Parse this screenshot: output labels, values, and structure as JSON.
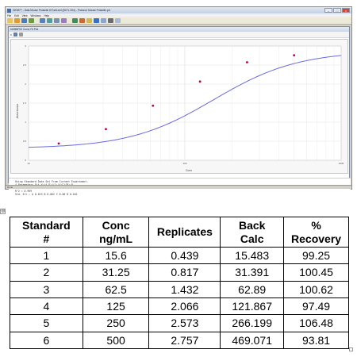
{
  "app": {
    "title": "GEN5™ - Data Mouse Prolactin KIT,std.xml (BCTL 004) - Protocol: Mouse Prolactin.prt",
    "menu": [
      "File",
      "Edit",
      "View",
      "Windows",
      "Help"
    ],
    "window_buttons": [
      "–",
      "□",
      "×"
    ],
    "child_title": "MOBBP02 Curve Fit Plot",
    "zoom_label": "x"
  },
  "text_panel": {
    "lines": [
      "Using Standard Data Set From Current Experiment.",
      "4 Parameters Fit Y=(A-D)/(1+(X/C)^B)+D",
      "A=0.309  B=1.61  C=152.8  D=2.87",
      "R^2 = 0.999",
      "Std. Err.: A 0.013   B 0.062   C 8.06   D 0.041"
    ]
  },
  "status": "Done",
  "chart_data": {
    "type": "scatter",
    "title": "",
    "xlabel": "Conc",
    "ylabel": "Absorbance",
    "x_scale": "log",
    "xlim": [
      10,
      1000
    ],
    "ylim": [
      0,
      3
    ],
    "x_ticks": [
      10,
      100,
      1000
    ],
    "y_ticks": [
      0,
      0.5,
      1,
      1.5,
      2,
      2.5,
      3
    ],
    "grid": true,
    "points": [
      {
        "x": 15.6,
        "y": 0.439
      },
      {
        "x": 31.25,
        "y": 0.817
      },
      {
        "x": 62.5,
        "y": 1.432
      },
      {
        "x": 125,
        "y": 2.066
      },
      {
        "x": 250,
        "y": 2.573
      },
      {
        "x": 500,
        "y": 2.757
      }
    ],
    "fit": {
      "A": 0.309,
      "B": 1.61,
      "C": 152.8,
      "D": 2.87
    },
    "colors": {
      "points": "#b2004f",
      "curve": "#6a6adf",
      "grid": "#dddddd"
    }
  },
  "table": {
    "headers": [
      "Standard\n#",
      "Conc\nng/mL",
      "Replicates",
      "Back\nCalc",
      "%\nRecovery"
    ],
    "rows": [
      [
        "1",
        "15.6",
        "0.439",
        "15.483",
        "99.25"
      ],
      [
        "2",
        "31.25",
        "0.817",
        "31.391",
        "100.45"
      ],
      [
        "3",
        "62.5",
        "1.432",
        "62.89",
        "100.62"
      ],
      [
        "4",
        "125",
        "2.066",
        "121.867",
        "97.49"
      ],
      [
        "5",
        "250",
        "2.573",
        "266.199",
        "106.48"
      ],
      [
        "6",
        "500",
        "2.757",
        "469.071",
        "93.81"
      ]
    ]
  },
  "anchor_icon": "move-anchor-icon"
}
